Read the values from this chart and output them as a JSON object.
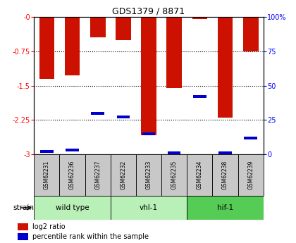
{
  "title": "GDS1379 / 8871",
  "samples": [
    "GSM62231",
    "GSM62236",
    "GSM62237",
    "GSM62232",
    "GSM62233",
    "GSM62235",
    "GSM62234",
    "GSM62238",
    "GSM62239"
  ],
  "log2_ratio": [
    -1.35,
    -1.28,
    -0.45,
    -0.5,
    -2.58,
    -1.55,
    -0.05,
    -2.2,
    -0.75
  ],
  "percentile_rank": [
    2,
    3,
    30,
    27,
    15,
    1,
    42,
    1,
    12
  ],
  "ylim_left": [
    -3,
    0
  ],
  "ylim_right": [
    0,
    100
  ],
  "yticks_left": [
    0,
    -0.75,
    -1.5,
    -2.25,
    -3
  ],
  "ytick_labels_left": [
    "-0",
    "-0.75",
    "-1.5",
    "-2.25",
    "-3"
  ],
  "yticks_right": [
    0,
    25,
    50,
    75,
    100
  ],
  "ytick_labels_right": [
    "0",
    "25",
    "50",
    "75",
    "100%"
  ],
  "bar_color_red": "#cc1100",
  "bar_color_blue": "#0000cc",
  "background_plot": "#ffffff",
  "background_label": "#c8c8c8",
  "group_configs": [
    {
      "label": "wild type",
      "cols": [
        0,
        1,
        2
      ],
      "color": "#b8f0b8"
    },
    {
      "label": "vhl-1",
      "cols": [
        3,
        4,
        5
      ],
      "color": "#b8f0b8"
    },
    {
      "label": "hif-1",
      "cols": [
        6,
        7,
        8
      ],
      "color": "#55cc55"
    }
  ],
  "strain_label": "strain",
  "legend_log2": "log2 ratio",
  "legend_pct": "percentile rank within the sample"
}
